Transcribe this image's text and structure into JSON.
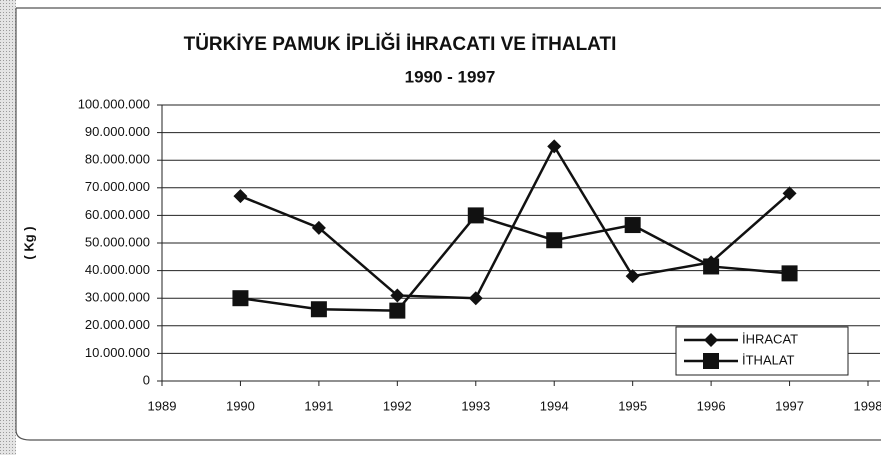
{
  "chart_data": {
    "type": "line",
    "title": "TÜRKİYE PAMUK İPLİĞİ İHRACATI VE İTHALATI",
    "subtitle": "1990 - 1997",
    "y_label": "( Kg )",
    "x": [
      1990,
      1991,
      1992,
      1993,
      1994,
      1995,
      1996,
      1997
    ],
    "series": [
      {
        "name": "İHRACAT",
        "color": "#111111",
        "marker": "diamond",
        "values": [
          67000000,
          55500000,
          31000000,
          30000000,
          85000000,
          38000000,
          43000000,
          68000000
        ]
      },
      {
        "name": "İTHALAT",
        "color": "#111111",
        "marker": "square",
        "values": [
          30000000,
          26000000,
          25500000,
          60000000,
          51000000,
          56500000,
          41500000,
          39000000
        ]
      }
    ],
    "xlim": [
      1989,
      1998
    ],
    "xticks": [
      1989,
      1990,
      1991,
      1992,
      1993,
      1994,
      1995,
      1996,
      1997,
      1998
    ],
    "ylim": [
      0,
      100000000
    ],
    "yticks": [
      0,
      {
        "value": 10000000,
        "label": "10.000.000"
      },
      {
        "value": 20000000,
        "label": "20.000.000"
      },
      {
        "value": 30000000,
        "label": "30.000.000"
      },
      {
        "value": 40000000,
        "label": "40.000.000"
      },
      {
        "value": 50000000,
        "label": "50.000.000"
      },
      {
        "value": 60000000,
        "label": "60.000.000"
      },
      {
        "value": 70000000,
        "label": "70.000.000"
      },
      {
        "value": 80000000,
        "label": "80.000.000"
      },
      {
        "value": 90000000,
        "label": "90.000.000"
      },
      {
        "value": 100000000,
        "label": "100.000.000"
      }
    ],
    "grid": true,
    "legend": "lower right"
  }
}
